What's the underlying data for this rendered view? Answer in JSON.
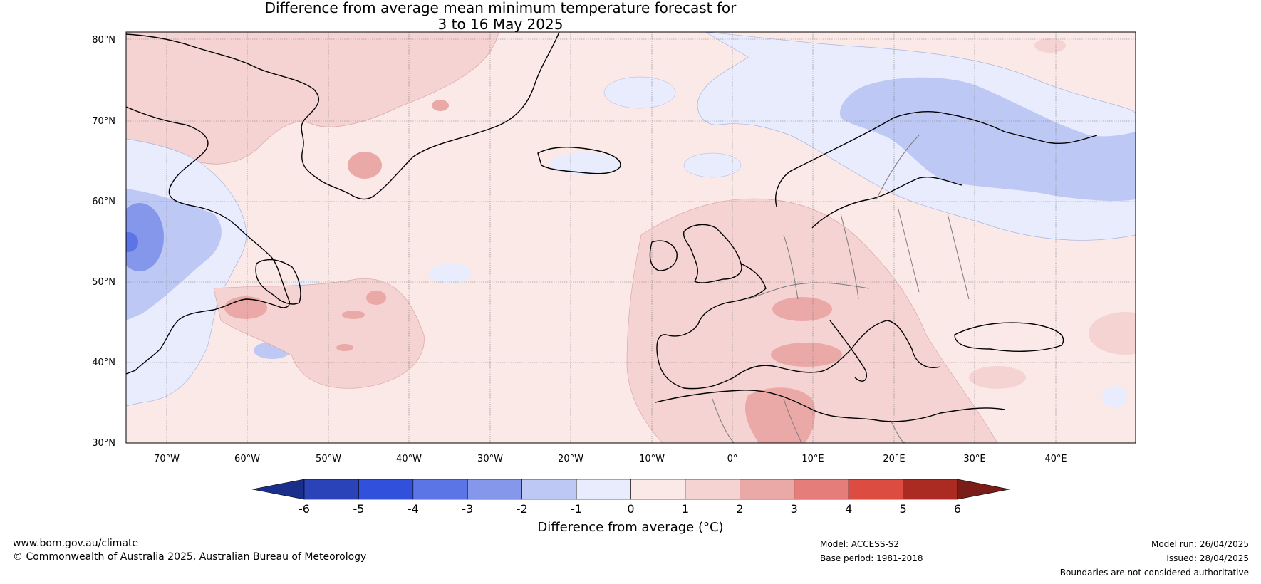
{
  "title": {
    "line1": "Difference from average mean minimum temperature forecast for",
    "line2": "3 to 16 May 2025"
  },
  "map": {
    "lat_labels": [
      "80°N",
      "70°N",
      "60°N",
      "50°N",
      "40°N",
      "30°N"
    ],
    "lon_labels": [
      "70°W",
      "60°W",
      "50°W",
      "40°W",
      "30°W",
      "20°W",
      "10°W",
      "0°",
      "10°E",
      "20°E",
      "30°E",
      "40°E"
    ],
    "ocean_base_color": "#fbe9e8"
  },
  "colorbar": {
    "label": "Difference from average (°C)",
    "ticks": [
      "-6",
      "-5",
      "-4",
      "-3",
      "-2",
      "-1",
      "0",
      "1",
      "2",
      "3",
      "4",
      "5",
      "6"
    ],
    "colors": [
      "#1a2e8c",
      "#2a43b8",
      "#3151dc",
      "#5c75e6",
      "#8497eb",
      "#bec8f5",
      "#e8ecfc",
      "#fbe9e8",
      "#f4d3d2",
      "#eaa9a7",
      "#e57e7a",
      "#dc4c40",
      "#ab2a22",
      "#7a1c18"
    ]
  },
  "footer": {
    "website": "www.bom.gov.au/climate",
    "copyright": "© Commonwealth of Australia 2025, Australian Bureau of Meteorology",
    "model": "Model: ACCESS-S2",
    "base_period": "Base period: 1981-2018",
    "model_run": "Model run: 26/04/2025",
    "issued": "Issued: 28/04/2025",
    "disclaimer": "Boundaries are not considered authoritative"
  }
}
